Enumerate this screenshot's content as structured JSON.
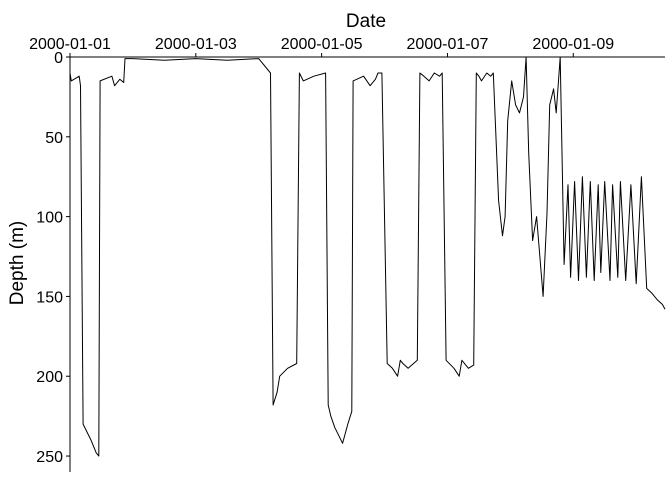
{
  "chart_data": {
    "type": "line",
    "title": "",
    "xlabel": "Date",
    "ylabel": "Depth (m)",
    "x_axis_position": "top",
    "y_axis_inverted": true,
    "grid": false,
    "legend": "none",
    "line_color": "#000000",
    "xlim": [
      "2000-01-01T00:00",
      "2000-01-10T11:00"
    ],
    "ylim": [
      0,
      260
    ],
    "x_ticks": [
      "2000-01-01",
      "2000-01-03",
      "2000-01-05",
      "2000-01-07",
      "2000-01-09"
    ],
    "y_ticks": [
      0,
      50,
      100,
      150,
      200,
      250
    ],
    "series": [
      {
        "x": [
          "2000-01-01T00:00",
          "2000-01-01T00:30",
          "2000-01-01T03:30",
          "2000-01-01T04:00",
          "2000-01-01T05:00",
          "2000-01-01T08:00",
          "2000-01-01T10:00",
          "2000-01-01T11:00",
          "2000-01-01T11:30",
          "2000-01-01T16:00",
          "2000-01-01T17:00",
          "2000-01-01T19:00",
          "2000-01-01T20:30",
          "2000-01-01T21:00",
          "2000-01-02T00:00",
          "2000-01-02T12:00",
          "2000-01-03T00:00",
          "2000-01-03T12:00",
          "2000-01-04T00:00",
          "2000-01-04T04:30",
          "2000-01-04T05:30",
          "2000-01-04T07:00",
          "2000-01-04T08:00",
          "2000-01-04T11:00",
          "2000-01-04T14:30",
          "2000-01-04T15:30",
          "2000-01-04T17:00",
          "2000-01-04T21:00",
          "2000-01-05T01:30",
          "2000-01-05T02:30",
          "2000-01-05T03:30",
          "2000-01-05T05:00",
          "2000-01-05T08:00",
          "2000-01-05T10:00",
          "2000-01-05T11:30",
          "2000-01-05T12:00",
          "2000-01-05T16:00",
          "2000-01-05T18:30",
          "2000-01-05T20:30",
          "2000-01-05T21:30",
          "2000-01-05T23:00",
          "2000-01-06T01:00",
          "2000-01-06T03:00",
          "2000-01-06T05:00",
          "2000-01-06T06:00",
          "2000-01-06T07:00",
          "2000-01-06T09:00",
          "2000-01-06T12:30",
          "2000-01-06T13:30",
          "2000-01-06T15:00",
          "2000-01-06T17:00",
          "2000-01-06T19:00",
          "2000-01-06T21:00",
          "2000-01-06T22:00",
          "2000-01-06T23:30",
          "2000-01-07T02:30",
          "2000-01-07T04:30",
          "2000-01-07T05:30",
          "2000-01-07T08:00",
          "2000-01-07T10:00",
          "2000-01-07T11:00",
          "2000-01-07T12:00",
          "2000-01-07T13:00",
          "2000-01-07T15:00",
          "2000-01-07T16:30",
          "2000-01-07T17:30",
          "2000-01-07T19:30",
          "2000-01-07T21:00",
          "2000-01-07T22:00",
          "2000-01-07T23:00",
          "2000-01-08T00:30",
          "2000-01-08T02:00",
          "2000-01-08T03:30",
          "2000-01-08T05:00",
          "2000-01-08T06:00",
          "2000-01-08T07:00",
          "2000-01-08T08:30",
          "2000-01-08T10:00",
          "2000-01-08T11:00",
          "2000-01-08T12:30",
          "2000-01-08T14:00",
          "2000-01-08T15:00",
          "2000-01-08T16:30",
          "2000-01-08T17:30",
          "2000-01-08T19:00",
          "2000-01-08T20:30",
          "2000-01-08T22:00",
          "2000-01-08T23:00",
          "2000-01-09T00:30",
          "2000-01-09T02:00",
          "2000-01-09T03:30",
          "2000-01-09T05:00",
          "2000-01-09T06:30",
          "2000-01-09T08:00",
          "2000-01-09T09:30",
          "2000-01-09T10:30",
          "2000-01-09T12:00",
          "2000-01-09T14:00",
          "2000-01-09T15:00",
          "2000-01-09T17:00",
          "2000-01-09T18:00",
          "2000-01-09T20:00",
          "2000-01-09T22:00",
          "2000-01-10T00:00",
          "2000-01-10T02:00",
          "2000-01-10T04:00",
          "2000-01-10T06:00",
          "2000-01-10T08:00",
          "2000-01-10T10:00",
          "2000-01-10T11:00"
        ],
        "y": [
          10,
          15,
          12,
          18,
          230,
          240,
          248,
          250,
          15,
          12,
          18,
          14,
          16,
          1,
          1,
          2,
          1,
          2,
          1,
          10,
          218,
          210,
          200,
          195,
          192,
          10,
          15,
          12,
          10,
          218,
          225,
          232,
          242,
          230,
          222,
          15,
          12,
          18,
          14,
          10,
          10,
          192,
          195,
          200,
          190,
          192,
          195,
          190,
          10,
          12,
          15,
          10,
          12,
          10,
          190,
          195,
          200,
          190,
          195,
          193,
          10,
          12,
          15,
          10,
          12,
          10,
          90,
          112,
          100,
          40,
          15,
          30,
          35,
          25,
          0,
          60,
          115,
          100,
          120,
          150,
          98,
          30,
          20,
          35,
          0,
          130,
          80,
          138,
          78,
          140,
          75,
          138,
          78,
          140,
          80,
          135,
          78,
          140,
          80,
          138,
          78,
          140,
          80,
          142,
          75,
          145,
          148,
          152,
          155,
          158
        ]
      }
    ]
  }
}
